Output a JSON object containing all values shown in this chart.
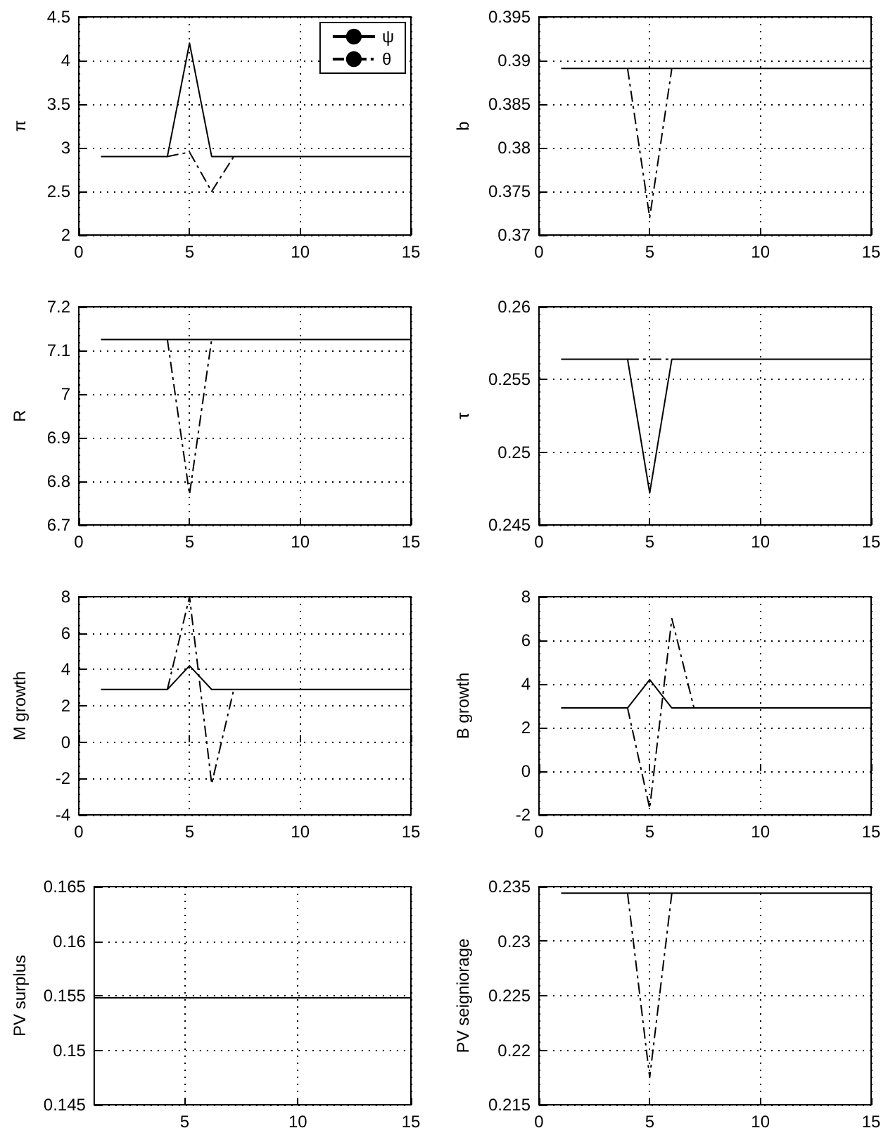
{
  "chart_data": [
    {
      "type": "line",
      "ylabel": "π",
      "x": [
        1,
        2,
        3,
        4,
        5,
        6,
        7,
        8,
        9,
        10,
        11,
        12,
        13,
        14,
        15
      ],
      "xlim": [
        0,
        15
      ],
      "xticks": [
        0,
        5,
        10,
        15
      ],
      "ylim": [
        2,
        4.5
      ],
      "yticks": [
        2,
        2.5,
        3,
        3.5,
        4,
        4.5
      ],
      "grid": true,
      "legend": "top right",
      "series": [
        {
          "name": "ψ",
          "color": "#000000",
          "line_style": "solid",
          "values": [
            2.9,
            2.9,
            2.9,
            2.9,
            4.2,
            2.9,
            2.9,
            2.9,
            2.9,
            2.9,
            2.9,
            2.9,
            2.9,
            2.9,
            2.9
          ]
        },
        {
          "name": "θ",
          "color": "#000000",
          "line_style": "dashed",
          "x": [
            4,
            5,
            6,
            7
          ],
          "values": [
            2.9,
            2.95,
            2.5,
            2.9
          ]
        }
      ]
    },
    {
      "type": "line",
      "ylabel": "b",
      "x": [
        1,
        2,
        3,
        4,
        5,
        6,
        7,
        8,
        9,
        10,
        11,
        12,
        13,
        14,
        15
      ],
      "xlim": [
        0,
        15
      ],
      "xticks": [
        0,
        5,
        10,
        15
      ],
      "ylim": [
        0.37,
        0.395
      ],
      "yticks": [
        0.37,
        0.375,
        0.38,
        0.385,
        0.39,
        0.395
      ],
      "grid": true,
      "series": [
        {
          "color": "#000000",
          "line_style": "solid",
          "values": [
            0.3891,
            0.3891,
            0.3891,
            0.3891,
            0.3891,
            0.3891,
            0.3891,
            0.3891,
            0.3891,
            0.3891,
            0.3891,
            0.3891,
            0.3891,
            0.3891,
            0.3891
          ]
        },
        {
          "color": "#000000",
          "line_style": "dashed",
          "x": [
            4,
            5,
            6
          ],
          "values": [
            0.3891,
            0.372,
            0.3891
          ]
        }
      ]
    },
    {
      "type": "line",
      "ylabel": "R",
      "x": [
        1,
        2,
        3,
        4,
        5,
        6,
        7,
        8,
        9,
        10,
        11,
        12,
        13,
        14,
        15
      ],
      "xlim": [
        0,
        15
      ],
      "xticks": [
        0,
        5,
        10,
        15
      ],
      "ylim": [
        6.7,
        7.2
      ],
      "yticks": [
        6.7,
        6.8,
        6.9,
        7,
        7.1,
        7.2
      ],
      "grid": true,
      "series": [
        {
          "color": "#000000",
          "line_style": "solid",
          "values": [
            7.125,
            7.125,
            7.125,
            7.125,
            7.125,
            7.125,
            7.125,
            7.125,
            7.125,
            7.125,
            7.125,
            7.125,
            7.125,
            7.125,
            7.125
          ]
        },
        {
          "color": "#000000",
          "line_style": "dashed",
          "x": [
            4,
            5,
            6
          ],
          "values": [
            7.125,
            6.77,
            7.125
          ]
        }
      ]
    },
    {
      "type": "line",
      "ylabel": "τ",
      "x": [
        1,
        2,
        3,
        4,
        5,
        6,
        7,
        8,
        9,
        10,
        11,
        12,
        13,
        14,
        15
      ],
      "xlim": [
        0,
        15
      ],
      "xticks": [
        0,
        5,
        10,
        15
      ],
      "ylim": [
        0.245,
        0.26
      ],
      "yticks": [
        0.245,
        0.25,
        0.255,
        0.26
      ],
      "grid": true,
      "series": [
        {
          "color": "#000000",
          "line_style": "solid",
          "values": [
            0.2564,
            0.2564,
            0.2564,
            0.2564,
            0.2472,
            0.2564,
            0.2564,
            0.2564,
            0.2564,
            0.2564,
            0.2564,
            0.2564,
            0.2564,
            0.2564,
            0.2564
          ]
        },
        {
          "color": "#000000",
          "line_style": "dashed",
          "x": [
            4,
            5,
            6
          ],
          "values": [
            0.2564,
            0.2564,
            0.2564
          ]
        }
      ]
    },
    {
      "type": "line",
      "ylabel": "M growth",
      "x": [
        1,
        2,
        3,
        4,
        5,
        6,
        7,
        8,
        9,
        10,
        11,
        12,
        13,
        14,
        15
      ],
      "xlim": [
        0,
        15
      ],
      "xticks": [
        0,
        5,
        10,
        15
      ],
      "ylim": [
        -4,
        8
      ],
      "yticks": [
        -4,
        -2,
        0,
        2,
        4,
        6,
        8
      ],
      "grid": true,
      "series": [
        {
          "color": "#000000",
          "line_style": "solid",
          "values": [
            2.9,
            2.9,
            2.9,
            2.9,
            4.2,
            2.9,
            2.9,
            2.9,
            2.9,
            2.9,
            2.9,
            2.9,
            2.9,
            2.9,
            2.9
          ]
        },
        {
          "color": "#000000",
          "line_style": "dashed",
          "x": [
            4,
            5,
            6,
            7
          ],
          "values": [
            2.9,
            8,
            -2.3,
            2.9
          ]
        }
      ]
    },
    {
      "type": "line",
      "ylabel": "B growth",
      "x": [
        1,
        2,
        3,
        4,
        5,
        6,
        7,
        8,
        9,
        10,
        11,
        12,
        13,
        14,
        15
      ],
      "xlim": [
        0,
        15
      ],
      "xticks": [
        0,
        5,
        10,
        15
      ],
      "ylim": [
        -2,
        8
      ],
      "yticks": [
        -2,
        0,
        2,
        4,
        6,
        8
      ],
      "grid": true,
      "series": [
        {
          "color": "#000000",
          "line_style": "solid",
          "values": [
            2.9,
            2.9,
            2.9,
            2.9,
            4.2,
            2.9,
            2.9,
            2.9,
            2.9,
            2.9,
            2.9,
            2.9,
            2.9,
            2.9,
            2.9
          ]
        },
        {
          "color": "#000000",
          "line_style": "dashed",
          "x": [
            4,
            5,
            6,
            7
          ],
          "values": [
            2.9,
            -1.7,
            7,
            2.9
          ]
        }
      ]
    },
    {
      "type": "line",
      "ylabel": "PV surplus",
      "x": [
        1,
        2,
        3,
        4,
        5,
        6,
        7,
        8,
        9,
        10,
        11,
        12,
        13,
        14,
        15
      ],
      "xlim": [
        1,
        15
      ],
      "xticks": [
        5,
        10,
        15
      ],
      "ylim": [
        0.145,
        0.165
      ],
      "yticks": [
        0.145,
        0.15,
        0.155,
        0.16,
        0.165
      ],
      "grid": true,
      "series": [
        {
          "color": "#000000",
          "line_style": "solid",
          "values": [
            0.1548,
            0.1548,
            0.1548,
            0.1548,
            0.1548,
            0.1548,
            0.1548,
            0.1548,
            0.1548,
            0.1548,
            0.1548,
            0.1548,
            0.1548,
            0.1548,
            0.1548
          ]
        }
      ]
    },
    {
      "type": "line",
      "ylabel": "PV seigniorage",
      "x": [
        1,
        2,
        3,
        4,
        5,
        6,
        7,
        8,
        9,
        10,
        11,
        12,
        13,
        14,
        15
      ],
      "xlim": [
        0,
        15
      ],
      "xticks": [
        0,
        5,
        10,
        15
      ],
      "ylim": [
        0.215,
        0.235
      ],
      "yticks": [
        0.215,
        0.22,
        0.225,
        0.23,
        0.235
      ],
      "grid": true,
      "series": [
        {
          "color": "#000000",
          "line_style": "solid",
          "values": [
            0.2344,
            0.2344,
            0.2344,
            0.2344,
            0.2344,
            0.2344,
            0.2344,
            0.2344,
            0.2344,
            0.2344,
            0.2344,
            0.2344,
            0.2344,
            0.2344,
            0.2344
          ]
        },
        {
          "color": "#000000",
          "line_style": "dashed",
          "x": [
            4,
            5,
            6
          ],
          "values": [
            0.2344,
            0.2175,
            0.2344
          ]
        }
      ]
    }
  ]
}
